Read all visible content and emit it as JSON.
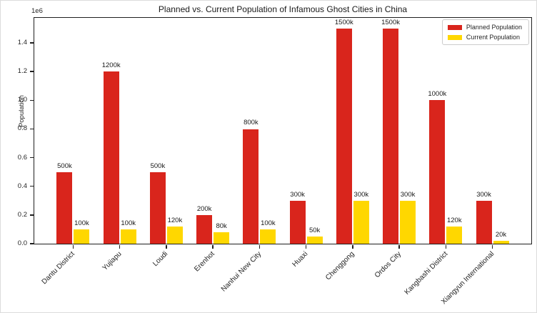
{
  "chart_data": {
    "type": "bar",
    "title": "Planned vs. Current Population of Infamous Ghost Cities in China",
    "xlabel": "",
    "ylabel": "Population",
    "y_offset_text": "1e6",
    "ylim": [
      0,
      1575000
    ],
    "grid": false,
    "legend_position": "upper right",
    "categories": [
      "Dantu District",
      "Yujiapu",
      "Loudi",
      "Erenhot",
      "Nanhui New City",
      "Huaxi",
      "Chenggong",
      "Ordos City",
      "Kangbashi District",
      "Xiangyun International"
    ],
    "yticks": [
      {
        "label": "0.0",
        "value": 0
      },
      {
        "label": "0.2",
        "value": 200000
      },
      {
        "label": "0.4",
        "value": 400000
      },
      {
        "label": "0.6",
        "value": 600000
      },
      {
        "label": "0.8",
        "value": 800000
      },
      {
        "label": "1.0",
        "value": 1000000
      },
      {
        "label": "1.2",
        "value": 1200000
      },
      {
        "label": "1.4",
        "value": 1400000
      }
    ],
    "series": [
      {
        "name": "Planned Population",
        "color": "#d9251c",
        "values": [
          500000,
          1200000,
          500000,
          200000,
          800000,
          300000,
          1500000,
          1500000,
          1000000,
          300000
        ],
        "labels": [
          "500k",
          "1200k",
          "500k",
          "200k",
          "800k",
          "300k",
          "1500k",
          "1500k",
          "1000k",
          "300k"
        ]
      },
      {
        "name": "Current Population",
        "color": "#ffd700",
        "values": [
          100000,
          100000,
          120000,
          80000,
          100000,
          50000,
          300000,
          300000,
          120000,
          20000
        ],
        "labels": [
          "100k",
          "100k",
          "120k",
          "80k",
          "100k",
          "50k",
          "300k",
          "300k",
          "120k",
          "20k"
        ]
      }
    ]
  }
}
